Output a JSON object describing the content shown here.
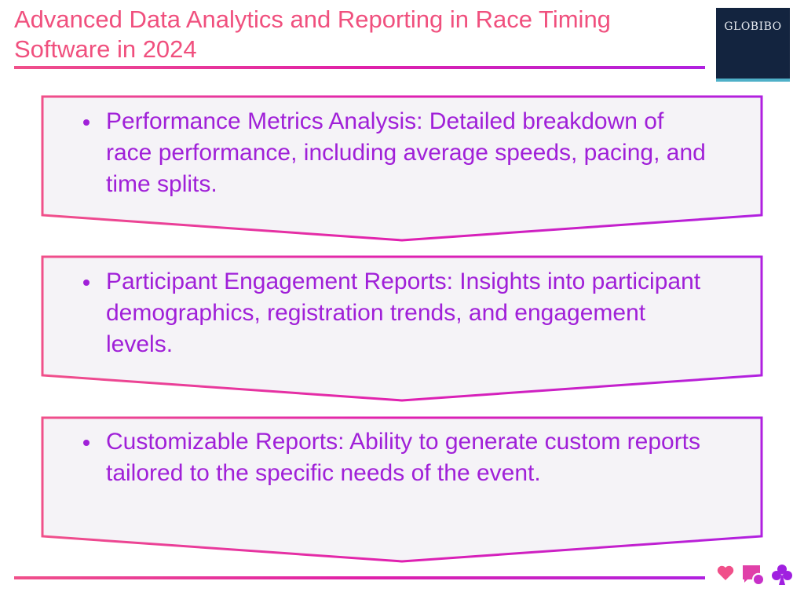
{
  "title": "Advanced Data Analytics and Reporting in Race Timing Software in 2024",
  "logo": {
    "text": "GLOBIBO"
  },
  "items": [
    {
      "text": "Performance Metrics Analysis: Detailed breakdown of race performance, including average speeds, pacing, and time splits."
    },
    {
      "text": "Participant Engagement Reports: Insights into participant demographics, registration trends, and engagement levels."
    },
    {
      "text": "Customizable Reports: Ability to generate custom reports tailored to the specific needs of the event."
    }
  ],
  "footer_icons": [
    "heart-icon",
    "chat-bubbles-icon",
    "club-icon"
  ],
  "colors": {
    "title": "#f0507e",
    "text": "#a020d8",
    "gradient_start": "#f0508a",
    "gradient_end": "#b020e0",
    "box_fill": "#f5f3f7",
    "logo_bg": "#13243f"
  }
}
